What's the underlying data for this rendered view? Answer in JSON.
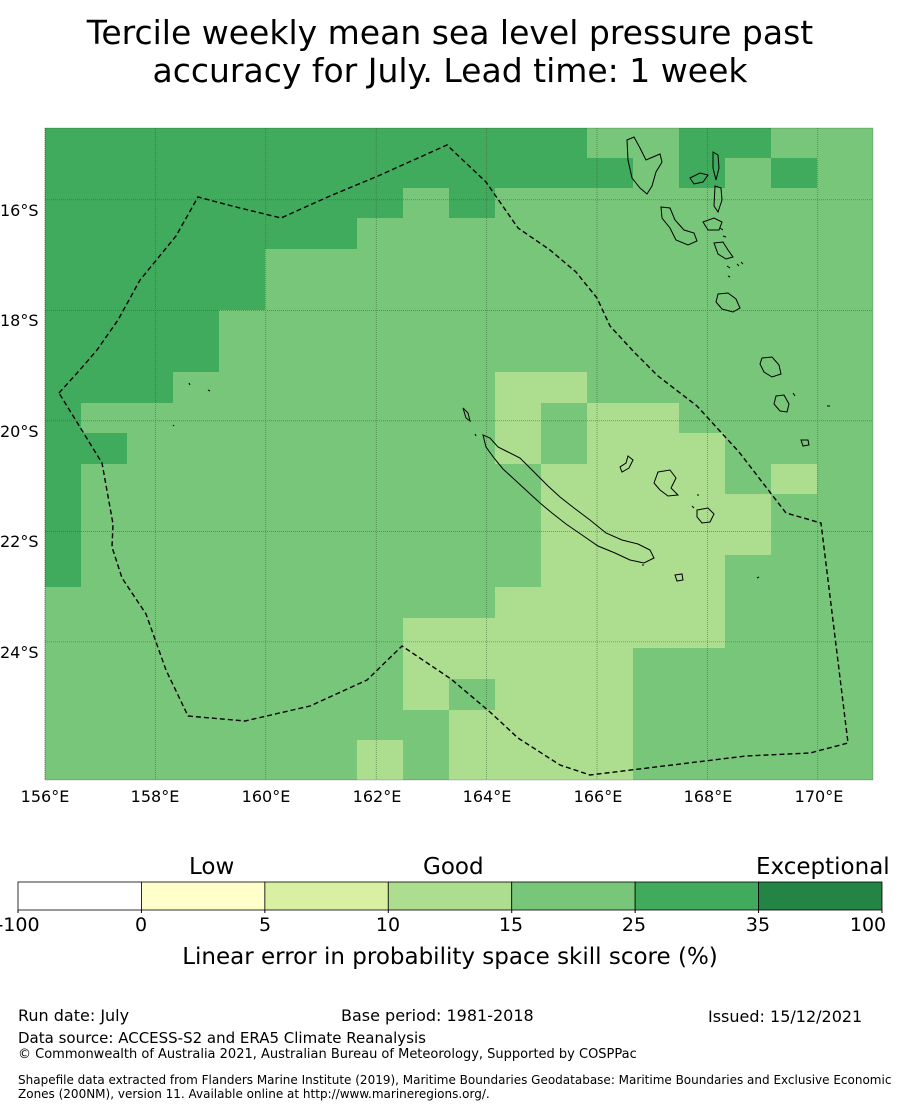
{
  "title_line1": "Tercile weekly mean sea level pressure past",
  "title_line2": "accuracy for July. Lead time: 1 week",
  "map": {
    "lon_range": [
      156,
      171
    ],
    "lat_range": [
      -14.7,
      -26.5
    ],
    "lon_ticks": [
      "156°E",
      "158°E",
      "160°E",
      "162°E",
      "164°E",
      "166°E",
      "168°E",
      "170°E"
    ],
    "lat_ticks": [
      "16°S",
      "18°S",
      "20°S",
      "22°S",
      "24°S"
    ],
    "lat_tick_values": [
      -16,
      -18,
      -20,
      -22,
      -24
    ],
    "lon_tick_values": [
      156,
      158,
      160,
      162,
      164,
      166,
      168,
      170
    ],
    "colors": {
      "c25_35": "#41ab5d",
      "c15_25": "#78c679",
      "c10_15": "#addd8e",
      "land": "#000000",
      "boundary": "#000000",
      "grid": "#2d5e2d"
    }
  },
  "colorbar": {
    "category_labels": [
      "Low",
      "Good",
      "Exceptional"
    ],
    "ticks": [
      "-100",
      "0",
      "5",
      "10",
      "15",
      "25",
      "35",
      "100"
    ],
    "segments": [
      {
        "from": "-100",
        "to": "0",
        "color": "#ffffff"
      },
      {
        "from": "0",
        "to": "5",
        "color": "#ffffcc"
      },
      {
        "from": "5",
        "to": "10",
        "color": "#d9f0a3"
      },
      {
        "from": "10",
        "to": "15",
        "color": "#addd8e"
      },
      {
        "from": "15",
        "to": "25",
        "color": "#78c679"
      },
      {
        "from": "25",
        "to": "35",
        "color": "#41ab5d"
      },
      {
        "from": "35",
        "to": "100",
        "color": "#238443"
      }
    ],
    "title": "Linear error in probability space skill score (%)"
  },
  "footer": {
    "run_date": "Run date: July",
    "base_period": "Base period: 1981-2018",
    "issued": "Issued: 15/12/2021",
    "data_source": "Data source: ACCESS-S2 and ERA5 Climate Reanalysis",
    "copyright": "© Commonwealth of Australia 2021, Australian Bureau of Meteorology, Supported by COSPPac",
    "shapefile_line1": "Shapefile data extracted from Flanders Marine Institute (2019), Maritime Boundaries Geodatabase: Maritime Boundaries and Exclusive Economic",
    "shapefile_line2": "Zones (200NM), version 11. Available online at http://www.marineregions.org/."
  }
}
